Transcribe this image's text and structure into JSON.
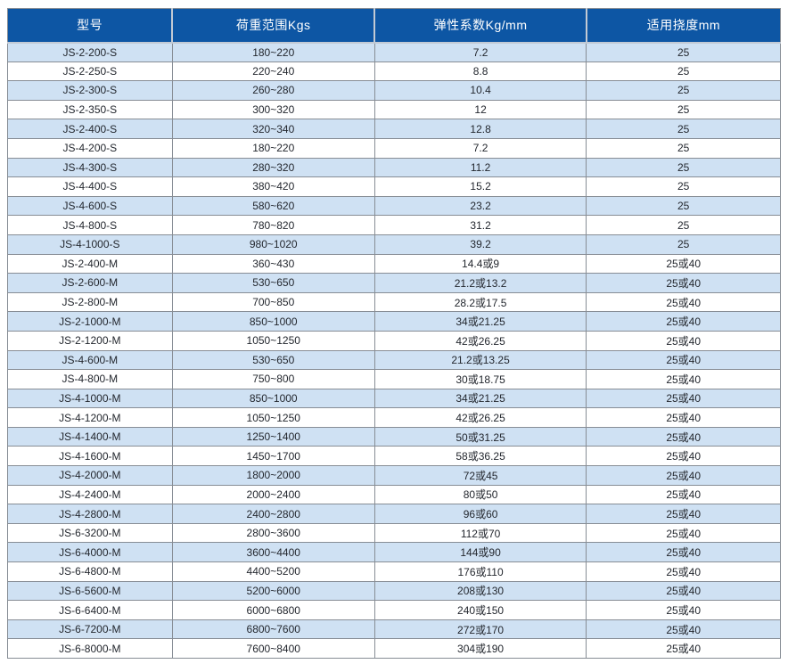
{
  "colors": {
    "header_bg": "#0d56a4",
    "header_text": "#ffffff",
    "header_divider": "#c2cad4",
    "row_alt_bg": "#cfe1f3",
    "row_bg": "#ffffff",
    "border": "#878d95",
    "cell_text": "#23272e"
  },
  "chart_data": {
    "type": "table",
    "title": "",
    "columns": [
      "型号",
      "荷重范围Kgs",
      "弹性系数Kg/mm",
      "适用挠度mm"
    ],
    "rows": [
      [
        "JS-2-200-S",
        "180~220",
        "7.2",
        "25"
      ],
      [
        "JS-2-250-S",
        "220~240",
        "8.8",
        "25"
      ],
      [
        "JS-2-300-S",
        "260~280",
        "10.4",
        "25"
      ],
      [
        "JS-2-350-S",
        "300~320",
        "12",
        "25"
      ],
      [
        "JS-2-400-S",
        "320~340",
        "12.8",
        "25"
      ],
      [
        "JS-4-200-S",
        "180~220",
        "7.2",
        "25"
      ],
      [
        "JS-4-300-S",
        "280~320",
        "11.2",
        "25"
      ],
      [
        "JS-4-400-S",
        "380~420",
        "15.2",
        "25"
      ],
      [
        "JS-4-600-S",
        "580~620",
        "23.2",
        "25"
      ],
      [
        "JS-4-800-S",
        "780~820",
        "31.2",
        "25"
      ],
      [
        "JS-4-1000-S",
        "980~1020",
        "39.2",
        "25"
      ],
      [
        "JS-2-400-M",
        "360~430",
        "14.4或9",
        "25或40"
      ],
      [
        "JS-2-600-M",
        "530~650",
        "21.2或13.2",
        "25或40"
      ],
      [
        "JS-2-800-M",
        "700~850",
        "28.2或17.5",
        "25或40"
      ],
      [
        "JS-2-1000-M",
        "850~1000",
        "34或21.25",
        "25或40"
      ],
      [
        "JS-2-1200-M",
        "1050~1250",
        "42或26.25",
        "25或40"
      ],
      [
        "JS-4-600-M",
        "530~650",
        "21.2或13.25",
        "25或40"
      ],
      [
        "JS-4-800-M",
        "750~800",
        "30或18.75",
        "25或40"
      ],
      [
        "JS-4-1000-M",
        "850~1000",
        "34或21.25",
        "25或40"
      ],
      [
        "JS-4-1200-M",
        "1050~1250",
        "42或26.25",
        "25或40"
      ],
      [
        "JS-4-1400-M",
        "1250~1400",
        "50或31.25",
        "25或40"
      ],
      [
        "JS-4-1600-M",
        "1450~1700",
        "58或36.25",
        "25或40"
      ],
      [
        "JS-4-2000-M",
        "1800~2000",
        "72或45",
        "25或40"
      ],
      [
        "JS-4-2400-M",
        "2000~2400",
        "80或50",
        "25或40"
      ],
      [
        "JS-4-2800-M",
        "2400~2800",
        "96或60",
        "25或40"
      ],
      [
        "JS-6-3200-M",
        "2800~3600",
        "112或70",
        "25或40"
      ],
      [
        "JS-6-4000-M",
        "3600~4400",
        "144或90",
        "25或40"
      ],
      [
        "JS-6-4800-M",
        "4400~5200",
        "176或110",
        "25或40"
      ],
      [
        "JS-6-5600-M",
        "5200~6000",
        "208或130",
        "25或40"
      ],
      [
        "JS-6-6400-M",
        "6000~6800",
        "240或150",
        "25或40"
      ],
      [
        "JS-6-7200-M",
        "6800~7600",
        "272或170",
        "25或40"
      ],
      [
        "JS-6-8000-M",
        "7600~8400",
        "304或190",
        "25或40"
      ]
    ]
  }
}
